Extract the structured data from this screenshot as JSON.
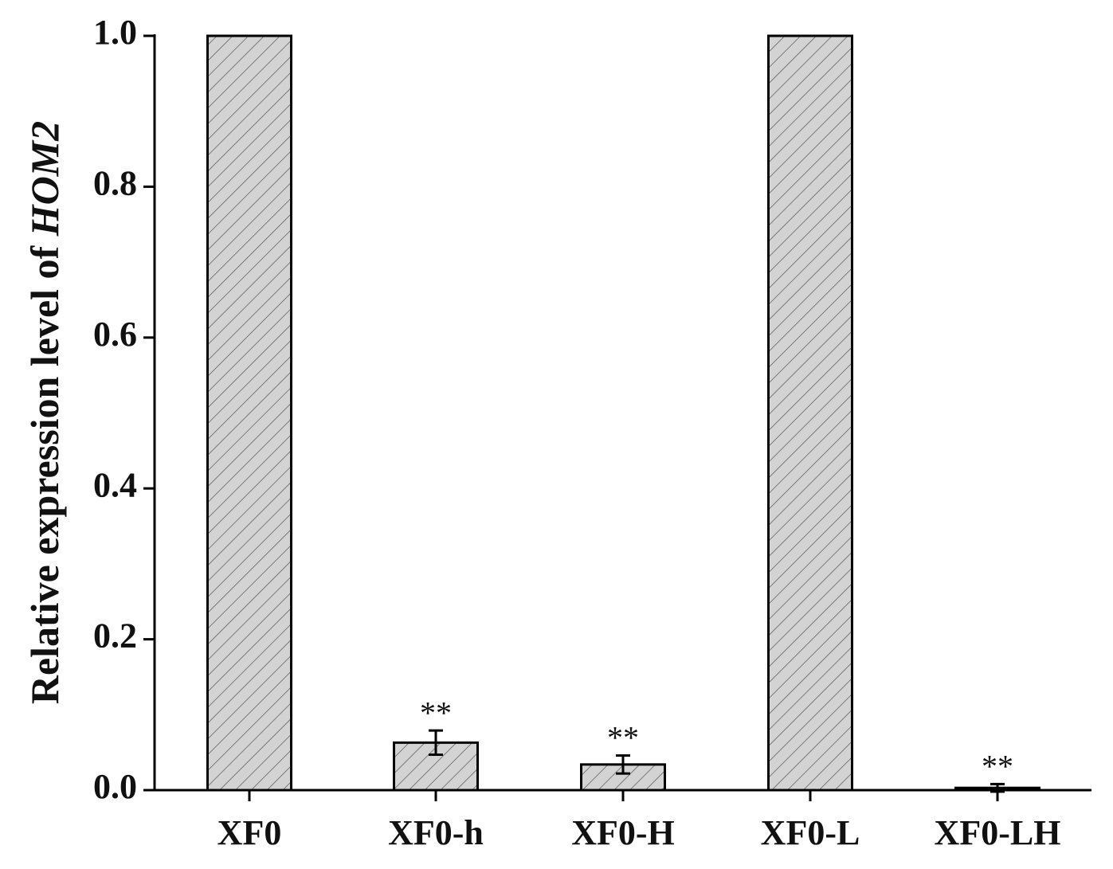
{
  "chart_data": {
    "type": "bar",
    "y_label_parts": [
      "Relative expression level of ",
      "HOM2"
    ],
    "categories": [
      "XF0",
      "XF0-h",
      "XF0-H",
      "XF0-L",
      "XF0-LH"
    ],
    "values": [
      1.0,
      0.063,
      0.034,
      1.0,
      0.003
    ],
    "errors": [
      null,
      0.016,
      0.012,
      null,
      0.005
    ],
    "annotations": [
      null,
      "**",
      "**",
      null,
      "**"
    ],
    "color": "#d3d3d3",
    "ylim": [
      0,
      1
    ],
    "yticks": [
      {
        "value": 0,
        "label": "0.0"
      },
      0.2,
      0.4,
      0.6,
      0.8,
      {
        "value": 1,
        "label": "1.0"
      }
    ]
  }
}
